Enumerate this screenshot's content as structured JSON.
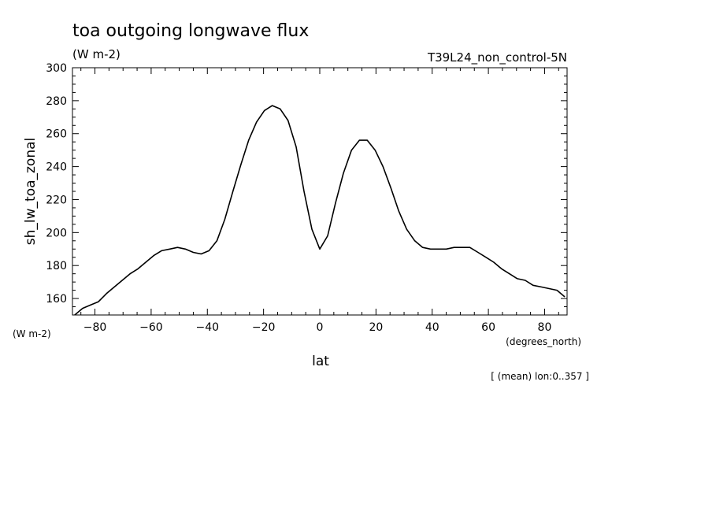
{
  "header": {
    "title": "toa outgoing longwave flux",
    "units": "(W m-2)",
    "run": "T39L24_non_control-5N"
  },
  "footer": {
    "y_units": "(W m-2)",
    "x_units": "(degrees_north)",
    "note": "[ (mean) lon:0..357 ]"
  },
  "chart_data": {
    "type": "line",
    "title": "toa outgoing longwave flux",
    "xlabel": "lat",
    "ylabel": "sh_lw_toa_zonal",
    "xlim": [
      -88,
      88
    ],
    "ylim": [
      150,
      300
    ],
    "xticks": [
      -80,
      -60,
      -40,
      -20,
      0,
      20,
      40,
      60,
      80
    ],
    "yticks": [
      160,
      180,
      200,
      220,
      240,
      260,
      280,
      300
    ],
    "grid": false,
    "series": [
      {
        "x": [
          -87.2,
          -84.4,
          -81.6,
          -78.8,
          -75.9,
          -73.1,
          -70.3,
          -67.5,
          -64.7,
          -61.9,
          -59.1,
          -56.3,
          -53.4,
          -50.6,
          -47.8,
          -45.0,
          -42.2,
          -39.4,
          -36.6,
          -33.8,
          -30.9,
          -28.1,
          -25.3,
          -22.5,
          -19.7,
          -16.9,
          -14.1,
          -11.3,
          -8.4,
          -5.6,
          -2.8,
          0,
          2.8,
          5.6,
          8.4,
          11.3,
          14.1,
          16.9,
          19.7,
          22.5,
          25.3,
          28.1,
          30.9,
          33.8,
          36.6,
          39.4,
          42.2,
          45.0,
          47.8,
          50.6,
          53.4,
          56.3,
          59.1,
          61.9,
          64.7,
          67.5,
          70.3,
          73.1,
          75.9,
          78.8,
          81.6,
          84.4,
          87.2
        ],
        "y": [
          150,
          154,
          156,
          158,
          163,
          167,
          171,
          175,
          178,
          182,
          186,
          189,
          190,
          191,
          190,
          188,
          187,
          189,
          195,
          208,
          225,
          241,
          256,
          267,
          274,
          277,
          275,
          268,
          252,
          225,
          202,
          190,
          198,
          218,
          236,
          250,
          256,
          256,
          250,
          240,
          227,
          213,
          202,
          195,
          191,
          190,
          190,
          190,
          191,
          191,
          191,
          188,
          185,
          182,
          178,
          175,
          172,
          171,
          168,
          167,
          166,
          165,
          161
        ]
      }
    ]
  }
}
